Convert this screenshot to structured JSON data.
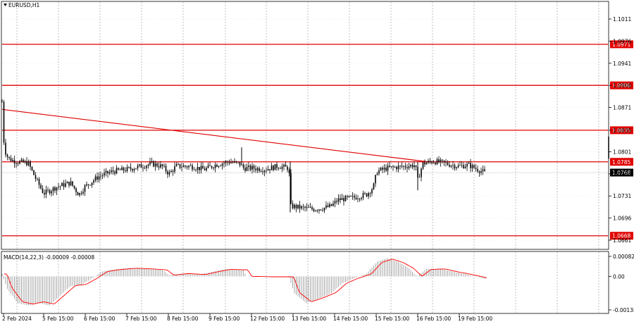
{
  "window": {
    "symbol_title": "EURUSD,H1"
  },
  "price_axis": {
    "ticks": [
      "1.1011",
      "1.0976",
      "1.0941",
      "1.0906",
      "1.0871",
      "1.0835",
      "1.0801",
      "1.0766",
      "1.0731",
      "1.0696",
      "1.0661"
    ],
    "tick_values": [
      1.1011,
      1.0976,
      1.0941,
      1.0906,
      1.0871,
      1.0835,
      1.0801,
      1.0766,
      1.0731,
      1.0696,
      1.0661
    ]
  },
  "horizontal_levels": [
    {
      "label": "1.0971",
      "value": 1.0971
    },
    {
      "label": "1.0906",
      "value": 1.0906
    },
    {
      "label": "1.0835",
      "value": 1.0835
    },
    {
      "label": "1.0785",
      "value": 1.0785
    },
    {
      "label": "1.0668",
      "value": 1.0668
    }
  ],
  "current_price": {
    "label": "1.0768",
    "value": 1.0768
  },
  "trendline": {
    "start_price": 1.0868,
    "end_price": 1.0785
  },
  "macd": {
    "title": "MACD(14,22,3) -0.00009 -0.00008",
    "ticks": [
      "0.00082",
      "0.00",
      "-0.00138"
    ],
    "tick_values": [
      0.00082,
      0.0,
      -0.00138
    ]
  },
  "time_axis": {
    "labels": [
      "2 Feb 2024",
      "5 Feb 15:00",
      "6 Feb 15:00",
      "7 Feb 15:00",
      "8 Feb 15:00",
      "9 Feb 15:00",
      "12 Feb 15:00",
      "13 Feb 15:00",
      "14 Feb 15:00",
      "15 Feb 15:00",
      "16 Feb 15:00",
      "19 Feb 15:00"
    ]
  },
  "colors": {
    "level_line": "#e00000",
    "level_label_bg": "#e00000",
    "price_label_bg": "#000000",
    "grid": "#9a9a9a",
    "candles": "#000000",
    "histogram": "#a0a0a0",
    "signal": "#ff0000"
  },
  "chart_data": {
    "type": "line",
    "title": "EURUSD,H1",
    "close_path": {
      "x": [
        "2 Feb 2024",
        "5 Feb 15:00",
        "6 Feb 15:00",
        "7 Feb 15:00",
        "8 Feb 15:00",
        "9 Feb 15:00",
        "12 Feb 15:00",
        "13 Feb 15:00",
        "14 Feb 15:00",
        "15 Feb 15:00",
        "16 Feb 15:00",
        "19 Feb 15:00"
      ],
      "y": [
        1.08,
        1.074,
        1.075,
        1.078,
        1.0775,
        1.0785,
        1.077,
        1.071,
        1.072,
        1.0775,
        1.0785,
        1.077
      ]
    },
    "ylim": [
      1.0655,
      1.102
    ],
    "grid": true
  }
}
